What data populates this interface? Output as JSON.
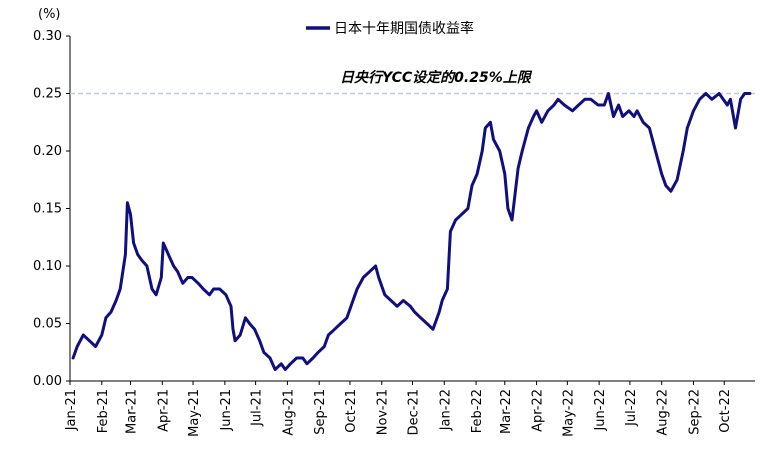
{
  "chart_data": {
    "type": "line",
    "unit_label": "(%)",
    "legend": {
      "placement": "top-center"
    },
    "series": [
      {
        "name": "日本十年期国债收益率",
        "color": "#0f0f7f",
        "points": [
          [
            "2021-01-04",
            0.02
          ],
          [
            "2021-01-08",
            0.03
          ],
          [
            "2021-01-14",
            0.04
          ],
          [
            "2021-01-20",
            0.035
          ],
          [
            "2021-01-26",
            0.03
          ],
          [
            "2021-02-01",
            0.04
          ],
          [
            "2021-02-05",
            0.055
          ],
          [
            "2021-02-10",
            0.06
          ],
          [
            "2021-02-15",
            0.07
          ],
          [
            "2021-02-19",
            0.08
          ],
          [
            "2021-02-24",
            0.11
          ],
          [
            "2021-02-26",
            0.155
          ],
          [
            "2021-03-01",
            0.145
          ],
          [
            "2021-03-04",
            0.12
          ],
          [
            "2021-03-08",
            0.11
          ],
          [
            "2021-03-12",
            0.105
          ],
          [
            "2021-03-17",
            0.1
          ],
          [
            "2021-03-22",
            0.08
          ],
          [
            "2021-03-26",
            0.075
          ],
          [
            "2021-03-31",
            0.09
          ],
          [
            "2021-04-02",
            0.12
          ],
          [
            "2021-04-07",
            0.11
          ],
          [
            "2021-04-12",
            0.1
          ],
          [
            "2021-04-16",
            0.095
          ],
          [
            "2021-04-21",
            0.085
          ],
          [
            "2021-04-26",
            0.09
          ],
          [
            "2021-04-30",
            0.09
          ],
          [
            "2021-05-06",
            0.085
          ],
          [
            "2021-05-11",
            0.08
          ],
          [
            "2021-05-17",
            0.075
          ],
          [
            "2021-05-21",
            0.08
          ],
          [
            "2021-05-27",
            0.08
          ],
          [
            "2021-06-02",
            0.075
          ],
          [
            "2021-06-07",
            0.065
          ],
          [
            "2021-06-09",
            0.045
          ],
          [
            "2021-06-11",
            0.035
          ],
          [
            "2021-06-16",
            0.04
          ],
          [
            "2021-06-21",
            0.055
          ],
          [
            "2021-06-25",
            0.05
          ],
          [
            "2021-06-30",
            0.045
          ],
          [
            "2021-07-05",
            0.035
          ],
          [
            "2021-07-09",
            0.025
          ],
          [
            "2021-07-15",
            0.02
          ],
          [
            "2021-07-20",
            0.01
          ],
          [
            "2021-07-26",
            0.015
          ],
          [
            "2021-07-30",
            0.01
          ],
          [
            "2021-08-04",
            0.015
          ],
          [
            "2021-08-10",
            0.02
          ],
          [
            "2021-08-16",
            0.02
          ],
          [
            "2021-08-20",
            0.015
          ],
          [
            "2021-08-26",
            0.02
          ],
          [
            "2021-08-31",
            0.025
          ],
          [
            "2021-09-06",
            0.03
          ],
          [
            "2021-09-10",
            0.04
          ],
          [
            "2021-09-16",
            0.045
          ],
          [
            "2021-09-22",
            0.05
          ],
          [
            "2021-09-28",
            0.055
          ],
          [
            "2021-10-04",
            0.07
          ],
          [
            "2021-10-08",
            0.08
          ],
          [
            "2021-10-14",
            0.09
          ],
          [
            "2021-10-20",
            0.095
          ],
          [
            "2021-10-26",
            0.1
          ],
          [
            "2021-10-29",
            0.09
          ],
          [
            "2021-11-04",
            0.075
          ],
          [
            "2021-11-10",
            0.07
          ],
          [
            "2021-11-16",
            0.065
          ],
          [
            "2021-11-22",
            0.07
          ],
          [
            "2021-11-29",
            0.065
          ],
          [
            "2021-12-03",
            0.06
          ],
          [
            "2021-12-09",
            0.055
          ],
          [
            "2021-12-15",
            0.05
          ],
          [
            "2021-12-21",
            0.045
          ],
          [
            "2021-12-27",
            0.06
          ],
          [
            "2021-12-30",
            0.07
          ],
          [
            "2022-01-04",
            0.08
          ],
          [
            "2022-01-07",
            0.13
          ],
          [
            "2022-01-12",
            0.14
          ],
          [
            "2022-01-18",
            0.145
          ],
          [
            "2022-01-24",
            0.15
          ],
          [
            "2022-01-28",
            0.17
          ],
          [
            "2022-02-02",
            0.18
          ],
          [
            "2022-02-07",
            0.2
          ],
          [
            "2022-02-10",
            0.22
          ],
          [
            "2022-02-15",
            0.225
          ],
          [
            "2022-02-18",
            0.21
          ],
          [
            "2022-02-24",
            0.2
          ],
          [
            "2022-03-01",
            0.18
          ],
          [
            "2022-03-04",
            0.15
          ],
          [
            "2022-03-08",
            0.14
          ],
          [
            "2022-03-14",
            0.185
          ],
          [
            "2022-03-18",
            0.2
          ],
          [
            "2022-03-24",
            0.22
          ],
          [
            "2022-03-29",
            0.23
          ],
          [
            "2022-04-01",
            0.235
          ],
          [
            "2022-04-06",
            0.225
          ],
          [
            "2022-04-12",
            0.235
          ],
          [
            "2022-04-18",
            0.24
          ],
          [
            "2022-04-22",
            0.245
          ],
          [
            "2022-04-28",
            0.24
          ],
          [
            "2022-05-06",
            0.235
          ],
          [
            "2022-05-12",
            0.24
          ],
          [
            "2022-05-18",
            0.245
          ],
          [
            "2022-05-24",
            0.245
          ],
          [
            "2022-05-31",
            0.24
          ],
          [
            "2022-06-06",
            0.24
          ],
          [
            "2022-06-10",
            0.25
          ],
          [
            "2022-06-15",
            0.23
          ],
          [
            "2022-06-20",
            0.24
          ],
          [
            "2022-06-24",
            0.23
          ],
          [
            "2022-06-30",
            0.235
          ],
          [
            "2022-07-05",
            0.23
          ],
          [
            "2022-07-08",
            0.235
          ],
          [
            "2022-07-14",
            0.225
          ],
          [
            "2022-07-20",
            0.22
          ],
          [
            "2022-07-26",
            0.2
          ],
          [
            "2022-08-01",
            0.18
          ],
          [
            "2022-08-05",
            0.17
          ],
          [
            "2022-08-10",
            0.165
          ],
          [
            "2022-08-16",
            0.175
          ],
          [
            "2022-08-22",
            0.2
          ],
          [
            "2022-08-26",
            0.22
          ],
          [
            "2022-09-01",
            0.235
          ],
          [
            "2022-09-07",
            0.245
          ],
          [
            "2022-09-13",
            0.25
          ],
          [
            "2022-09-19",
            0.245
          ],
          [
            "2022-09-26",
            0.25
          ],
          [
            "2022-09-30",
            0.245
          ],
          [
            "2022-10-04",
            0.24
          ],
          [
            "2022-10-07",
            0.245
          ],
          [
            "2022-10-12",
            0.22
          ],
          [
            "2022-10-17",
            0.245
          ],
          [
            "2022-10-21",
            0.25
          ],
          [
            "2022-10-26",
            0.25
          ]
        ]
      }
    ],
    "x_ticks": [
      "Jan-21",
      "Feb-21",
      "Mar-21",
      "Apr-21",
      "May-21",
      "Jun-21",
      "Jul-21",
      "Aug-21",
      "Sep-21",
      "Oct-21",
      "Nov-21",
      "Dec-21",
      "Jan-22",
      "Feb-22",
      "Mar-22",
      "Apr-22",
      "May-22",
      "Jun-22",
      "Jul-22",
      "Aug-22",
      "Sep-22",
      "Oct-22"
    ],
    "x_tick_dates": [
      "2021-01-01",
      "2021-02-01",
      "2021-03-01",
      "2021-04-01",
      "2021-05-01",
      "2021-06-01",
      "2021-07-01",
      "2021-08-01",
      "2021-09-01",
      "2021-10-01",
      "2021-11-01",
      "2021-12-01",
      "2022-01-01",
      "2022-02-01",
      "2022-03-01",
      "2022-04-01",
      "2022-05-01",
      "2022-06-01",
      "2022-07-01",
      "2022-08-01",
      "2022-09-01",
      "2022-10-01"
    ],
    "xlim": [
      "2021-01-01",
      "2022-10-31"
    ],
    "y_ticks": [
      "0.00",
      "0.05",
      "0.10",
      "0.15",
      "0.20",
      "0.25",
      "0.30"
    ],
    "ylim": [
      0,
      0.3
    ],
    "grid": false,
    "reference_line": {
      "value": 0.25,
      "color": "#b9c9e6",
      "style": "dashed",
      "label": "日央行YCC设定的0.25%上限"
    }
  }
}
